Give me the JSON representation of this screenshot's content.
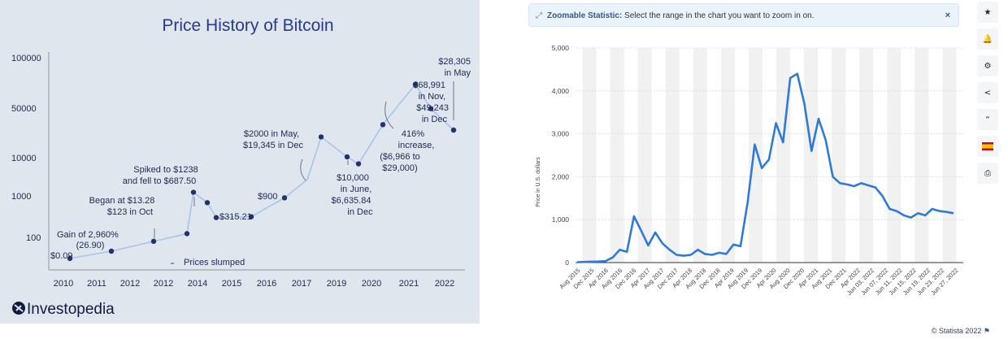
{
  "left": {
    "title": "Price History of Bitcoin",
    "brand": "Investopedia",
    "y_ticks": [
      "100000",
      "50000",
      "10000",
      "1000",
      "100"
    ],
    "x_ticks": [
      "2010",
      "2011",
      "2012",
      "2012",
      "2014",
      "2015",
      "2016",
      "2017",
      "2019",
      "2020",
      "2021",
      "2022"
    ],
    "annotations": {
      "a1": "$0.09",
      "a2_l1": "Gain of 2,960%",
      "a2_l2": "(26.90)",
      "a3_l1": "Began at $13.28",
      "a3_l2": "$123 in Oct",
      "a4_l1": "Spiked to $1238",
      "a4_l2": "and fell to $687.50",
      "a5": "Prices slumped",
      "a6": "$315.21",
      "a7": "$900",
      "a8_l1": "$2000 in May,",
      "a8_l2": "$19,345 in Dec",
      "a9_l1": "$10,000",
      "a9_l2": "in June,",
      "a9_l3": "$6,635.84",
      "a9_l4": "in Dec",
      "a10_l1": "416%",
      "a10_l2": "increase,",
      "a10_l3": "($6,966 to",
      "a10_l4": "$29,000)",
      "a11_l1": "$68,991",
      "a11_l2": "in Nov,",
      "a11_l3": "$49,243",
      "a11_l4": "in Dec",
      "a12_l1": "$28,305",
      "a12_l2": "in May"
    }
  },
  "right": {
    "banner_label": "Zoomable Statistic:",
    "banner_text": "Select the range in the chart you want to zoom in on.",
    "close_glyph": "×",
    "credit": "© Statista 2022",
    "y_label": "Price in U.S. dollars",
    "y_ticks": [
      "5,000",
      "4,000",
      "3,000",
      "2,000",
      "1,000",
      "0"
    ],
    "x_ticks": [
      "Aug 2015",
      "Dec 2015",
      "Apr 2016",
      "Aug 2016",
      "Dec 2016",
      "Apr 2017",
      "Aug 2017",
      "Dec 2017",
      "Apr 2018",
      "Aug 2018",
      "Dec 2018",
      "Apr 2019",
      "Aug 2019",
      "Dec 2019",
      "Apr 2020",
      "Aug 2020",
      "Dec 2020",
      "Apr 2021",
      "Aug 2021",
      "Dec 2021",
      "Apr 2022",
      "Jun 03, 2022",
      "Jun 07, 2022",
      "Jun 11, 2022",
      "Jun 15, 2022",
      "Jun 19, 2022",
      "Jun 23, 2022",
      "Jun 27, 2022"
    ],
    "toolbar_icons": [
      "star-icon",
      "bell-icon",
      "gear-icon",
      "share-icon",
      "quote-icon",
      "flag-spain-icon",
      "print-icon"
    ],
    "toolbar_glyphs": [
      "★",
      "🔔",
      "⚙",
      "<",
      "“",
      "",
      "⎙"
    ]
  },
  "chart_data": [
    {
      "type": "line",
      "title": "Price History of Bitcoin",
      "y_scale": "nonlinear",
      "x": [
        "2010",
        "2011",
        "2012",
        "2012",
        "2013",
        "2014",
        "2014",
        "2015",
        "2016",
        "2017",
        "2017",
        "2018",
        "2018",
        "2019",
        "2020",
        "2021",
        "2021",
        "2022"
      ],
      "values": [
        0.09,
        1,
        26.9,
        123,
        1238,
        687.5,
        300,
        315.21,
        900,
        2000,
        19345,
        10000,
        6635.84,
        29000,
        68991,
        49243,
        28305,
        28305
      ],
      "colors": {
        "line": "#a9c3ee",
        "marker": "#24316f",
        "title": "#283a8c"
      }
    },
    {
      "type": "line",
      "ylabel": "Price in U.S. dollars",
      "ylim": [
        0,
        5000
      ],
      "x": [
        "Aug 2015",
        "Dec 2015",
        "Apr 2016",
        "Aug 2016",
        "Dec 2016",
        "Apr 2017",
        "Aug 2017",
        "Oct 2017",
        "Dec 2017",
        "Jan 2018",
        "Feb 2018",
        "Mar 2018",
        "Apr 2018",
        "Jun 2018",
        "Aug 2018",
        "Oct 2018",
        "Dec 2018",
        "Mar 2019",
        "Jun 2019",
        "Aug 2019",
        "Dec 2019",
        "Mar 2020",
        "Jun 2020",
        "Aug 2020",
        "Oct 2020",
        "Dec 2020",
        "Jan 2021",
        "Feb 2021",
        "Apr 2021",
        "May 2021",
        "Jul 2021",
        "Aug 2021",
        "Sep 2021",
        "Oct 2021",
        "Nov 2021",
        "Dec 2021",
        "Jan 2022",
        "Feb 2022",
        "Mar 2022",
        "Apr 2022",
        "Jun 03, 2022",
        "Jun 05, 2022",
        "Jun 07, 2022",
        "Jun 09, 2022",
        "Jun 11, 2022",
        "Jun 13, 2022",
        "Jun 15, 2022",
        "Jun 17, 2022",
        "Jun 19, 2022",
        "Jun 21, 2022",
        "Jun 23, 2022",
        "Jun 25, 2022",
        "Jun 27, 2022",
        "Jun 30, 2022"
      ],
      "values": [
        10,
        15,
        20,
        25,
        35,
        120,
        300,
        250,
        1080,
        750,
        400,
        700,
        450,
        300,
        180,
        160,
        180,
        300,
        200,
        180,
        230,
        200,
        420,
        380,
        1400,
        2750,
        2200,
        2400,
        3250,
        2800,
        4300,
        4400,
        3700,
        2600,
        3350,
        2850,
        2000,
        1850,
        1820,
        1780,
        1850,
        1800,
        1750,
        1550,
        1250,
        1200,
        1100,
        1050,
        1150,
        1100,
        1250,
        1200,
        1180,
        1150
      ],
      "colors": {
        "line": "#2f7ad6",
        "bands": "#f1f1f1"
      }
    }
  ]
}
